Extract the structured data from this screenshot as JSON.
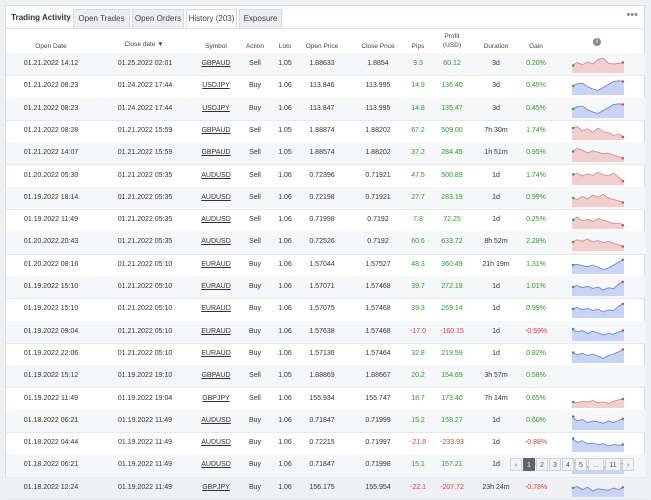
{
  "tabs": [
    {
      "label": "Trading Activity"
    },
    {
      "label": "Open Trades"
    },
    {
      "label": "Open Orders"
    },
    {
      "label": "History (203)"
    },
    {
      "label": "Exposure"
    }
  ],
  "menu_glyph": "•••",
  "columns": {
    "open_date": "Open Date",
    "close_date": "Close date ▼",
    "symbol": "Symbol",
    "action": "Action",
    "lots": "Lots",
    "open_price": "Open Price",
    "close_price": "Close Price",
    "pips": "Pips",
    "profit_l1": "Profit",
    "profit_l2": "(USD)",
    "duration": "Duration",
    "gain": "Gain",
    "info": "i"
  },
  "rows": [
    {
      "open": "01.21.2022 14:12",
      "close": "01.25.2022 02:01",
      "symbol": "GBPAUD",
      "action": "Sell",
      "lots": "1.05",
      "op": "1.88633",
      "cp": "1.8854",
      "pips": "9.3",
      "profit": "60.12",
      "duration": "3d",
      "gain": "0.20%",
      "positive": true,
      "color": "red",
      "spark": [
        0.6,
        0.4,
        0.55,
        0.35,
        0.5,
        0.2,
        0.1,
        0.45,
        0.5,
        0.45,
        0.4
      ]
    },
    {
      "open": "01.21.2022 08:23",
      "close": "01.24.2022 17:44",
      "symbol": "USDJPY",
      "action": "Buy",
      "lots": "1.06",
      "op": "113.846",
      "cp": "113.995",
      "pips": "14.9",
      "profit": "136.40",
      "duration": "3d",
      "gain": "0.45%",
      "positive": true,
      "color": "blue",
      "spark": [
        0.5,
        0.35,
        0.3,
        0.55,
        0.7,
        0.8,
        0.6,
        0.4,
        0.2,
        0.15,
        0.2
      ]
    },
    {
      "open": "01.21.2022 08:23",
      "close": "01.24.2022 17:44",
      "symbol": "USDJPY",
      "action": "Buy",
      "lots": "1.06",
      "op": "113.847",
      "cp": "113.995",
      "pips": "14.8",
      "profit": "135.47",
      "duration": "3d",
      "gain": "0.45%",
      "positive": true,
      "color": "blue",
      "spark": [
        0.5,
        0.35,
        0.3,
        0.55,
        0.7,
        0.8,
        0.6,
        0.4,
        0.2,
        0.15,
        0.2
      ]
    },
    {
      "open": "01.21.2022 08:28",
      "close": "01.21.2022 15:59",
      "symbol": "GBPAUD",
      "action": "Sell",
      "lots": "1.05",
      "op": "1.88874",
      "cp": "1.88202",
      "pips": "67.2",
      "profit": "509.00",
      "duration": "7h 30m",
      "gain": "1.74%",
      "positive": true,
      "color": "red",
      "spark": [
        0.3,
        0.2,
        0.5,
        0.35,
        0.6,
        0.3,
        0.55,
        0.6,
        0.8,
        0.7,
        0.9
      ]
    },
    {
      "open": "01.21.2022 14:07",
      "close": "01.21.2022 15:59",
      "symbol": "GBPAUD",
      "action": "Sell",
      "lots": "1.05",
      "op": "1.88574",
      "cp": "1.88202",
      "pips": "37.2",
      "profit": "284.45",
      "duration": "1h 51m",
      "gain": "0.95%",
      "positive": true,
      "color": "red",
      "spark": [
        0.4,
        0.2,
        0.3,
        0.5,
        0.35,
        0.45,
        0.55,
        0.5,
        0.65,
        0.75,
        0.85
      ]
    },
    {
      "open": "01.20.2022 05:30",
      "close": "01.21.2022 05:35",
      "symbol": "AUDUSD",
      "action": "Sell",
      "lots": "1.06",
      "op": "0.72396",
      "cp": "0.71921",
      "pips": "47.5",
      "profit": "500.89",
      "duration": "1d",
      "gain": "1.74%",
      "positive": true,
      "color": "red",
      "spark": [
        0.4,
        0.3,
        0.5,
        0.35,
        0.45,
        0.25,
        0.4,
        0.5,
        0.3,
        0.6,
        0.85
      ]
    },
    {
      "open": "01.19.2022 18:14",
      "close": "01.21.2022 05:35",
      "symbol": "AUDUSD",
      "action": "Sell",
      "lots": "1.06",
      "op": "0.72198",
      "cp": "0.71921",
      "pips": "27.7",
      "profit": "283.19",
      "duration": "1d",
      "gain": "0.99%",
      "positive": true,
      "color": "red",
      "spark": [
        0.5,
        0.6,
        0.4,
        0.55,
        0.3,
        0.45,
        0.25,
        0.5,
        0.6,
        0.7,
        0.8
      ]
    },
    {
      "open": "01.19.2022 11:49",
      "close": "01.21.2022 05:35",
      "symbol": "AUDUSD",
      "action": "Sell",
      "lots": "1.06",
      "op": "0.71998",
      "cp": "0.7192",
      "pips": "7.8",
      "profit": "72.25",
      "duration": "1d",
      "gain": "0.25%",
      "positive": true,
      "color": "red",
      "spark": [
        0.5,
        0.3,
        0.55,
        0.45,
        0.6,
        0.4,
        0.5,
        0.6,
        0.75,
        0.7,
        0.85
      ]
    },
    {
      "open": "01.20.2022 20:43",
      "close": "01.21.2022 05:35",
      "symbol": "AUDUSD",
      "action": "Sell",
      "lots": "1.06",
      "op": "0.72526",
      "cp": "0.7192",
      "pips": "60.6",
      "profit": "633.72",
      "duration": "8h 52m",
      "gain": "2.28%",
      "positive": true,
      "color": "red",
      "spark": [
        0.5,
        0.35,
        0.45,
        0.3,
        0.5,
        0.4,
        0.55,
        0.45,
        0.6,
        0.7,
        0.8
      ]
    },
    {
      "open": "01.20.2022 08:16",
      "close": "01.21.2022 05:10",
      "symbol": "EURAUD",
      "action": "Buy",
      "lots": "1.06",
      "op": "1.57044",
      "cp": "1.57527",
      "pips": "48.3",
      "profit": "360.49",
      "duration": "21h 19m",
      "gain": "1.31%",
      "positive": true,
      "color": "blue",
      "spark": [
        0.5,
        0.45,
        0.55,
        0.6,
        0.5,
        0.65,
        0.8,
        0.7,
        0.5,
        0.3,
        0.15
      ]
    },
    {
      "open": "01.19.2022 15:10",
      "close": "01.21.2022 05:10",
      "symbol": "EURAUD",
      "action": "Buy",
      "lots": "1.06",
      "op": "1.57071",
      "cp": "1.57468",
      "pips": "39.7",
      "profit": "272.19",
      "duration": "1d",
      "gain": "1.01%",
      "positive": true,
      "color": "blue",
      "spark": [
        0.5,
        0.4,
        0.55,
        0.45,
        0.6,
        0.5,
        0.7,
        0.55,
        0.6,
        0.3,
        0.15
      ]
    },
    {
      "open": "01.19.2022 15:10",
      "close": "01.21.2022 05:10",
      "symbol": "EURAUD",
      "action": "Buy",
      "lots": "1.06",
      "op": "1.57075",
      "cp": "1.57468",
      "pips": "39.3",
      "profit": "269.14",
      "duration": "1d",
      "gain": "0.99%",
      "positive": true,
      "color": "blue",
      "spark": [
        0.5,
        0.4,
        0.55,
        0.45,
        0.6,
        0.5,
        0.7,
        0.55,
        0.6,
        0.3,
        0.15
      ]
    },
    {
      "open": "01.19.2022 09:04",
      "close": "01.21.2022 05:10",
      "symbol": "EURAUD",
      "action": "Buy",
      "lots": "1.06",
      "op": "1.57638",
      "cp": "1.57468",
      "pips": "-17.0",
      "profit": "-160.15",
      "duration": "1d",
      "gain": "-0.59%",
      "positive": false,
      "color": "blue",
      "spark": [
        0.3,
        0.5,
        0.4,
        0.6,
        0.45,
        0.55,
        0.7,
        0.6,
        0.65,
        0.5,
        0.4
      ]
    },
    {
      "open": "01.19.2022 22:06",
      "close": "01.21.2022 05:10",
      "symbol": "EURAUD",
      "action": "Buy",
      "lots": "1.06",
      "op": "1.57136",
      "cp": "1.57464",
      "pips": "32.8",
      "profit": "219.59",
      "duration": "1d",
      "gain": "0.82%",
      "positive": true,
      "color": "blue",
      "spark": [
        0.4,
        0.55,
        0.45,
        0.6,
        0.5,
        0.65,
        0.8,
        0.6,
        0.5,
        0.35,
        0.2
      ]
    },
    {
      "open": "01.19.2022 15:12",
      "close": "01.19.2022 19:10",
      "symbol": "GBPAUD",
      "action": "Sell",
      "lots": "1.05",
      "op": "1.88869",
      "cp": "1.88667",
      "pips": "20.2",
      "profit": "154.69",
      "duration": "3h 57m",
      "gain": "0.58%",
      "positive": true,
      "color": "none",
      "spark": []
    },
    {
      "open": "01.19.2022 11:49",
      "close": "01.19.2022 19:04",
      "symbol": "GBPJPY",
      "action": "Sell",
      "lots": "1.06",
      "op": "155.934",
      "cp": "155.747",
      "pips": "18.7",
      "profit": "173.40",
      "duration": "7h 14m",
      "gain": "0.65%",
      "positive": true,
      "color": "red",
      "spark": [
        0.7,
        0.75,
        0.65,
        0.7,
        0.6,
        0.75,
        0.7,
        0.8,
        0.65,
        0.55,
        0.5
      ]
    },
    {
      "open": "01.18.2022 06:21",
      "close": "01.19.2022 11:49",
      "symbol": "AUDUSD",
      "action": "Buy",
      "lots": "1.06",
      "op": "0.71847",
      "cp": "0.71999",
      "pips": "15.2",
      "profit": "158.27",
      "duration": "1d",
      "gain": "0.60%",
      "positive": true,
      "color": "blue",
      "spark": [
        0.2,
        0.5,
        0.4,
        0.6,
        0.5,
        0.55,
        0.65,
        0.5,
        0.6,
        0.45,
        0.35
      ]
    },
    {
      "open": "01.18.2022 04:44",
      "close": "01.19.2022 11:49",
      "symbol": "AUDUSD",
      "action": "Buy",
      "lots": "1.06",
      "op": "0.72215",
      "cp": "0.71997",
      "pips": "-21.8",
      "profit": "-233.93",
      "duration": "1d",
      "gain": "-0.88%",
      "positive": false,
      "color": "blue",
      "spark": [
        0.2,
        0.45,
        0.35,
        0.55,
        0.5,
        0.6,
        0.55,
        0.7,
        0.6,
        0.65,
        0.6
      ]
    },
    {
      "open": "01.18.2022 06:21",
      "close": "01.19.2022 11:49",
      "symbol": "AUDUSD",
      "action": "Buy",
      "lots": "1.06",
      "op": "0.71847",
      "cp": "0.71998",
      "pips": "15.1",
      "profit": "157.21",
      "duration": "1d",
      "gain": "0.60%",
      "positive": true,
      "color": "blue",
      "spark": [
        0.2,
        0.5,
        0.4,
        0.6,
        0.5,
        0.55,
        0.65,
        0.5,
        0.6,
        0.45,
        0.35
      ]
    },
    {
      "open": "01.18.2022 12:24",
      "close": "01.19.2022 11:49",
      "symbol": "GBPJPY",
      "action": "Buy",
      "lots": "1.06",
      "op": "156.175",
      "cp": "155.954",
      "pips": "-22.1",
      "profit": "-207.72",
      "duration": "23h 24m",
      "gain": "-0.78%",
      "positive": false,
      "color": "blue",
      "spark": [
        0.5,
        0.4,
        0.6,
        0.45,
        0.7,
        0.55,
        0.6,
        0.65,
        0.5,
        0.6,
        0.45
      ]
    }
  ],
  "pager": {
    "prev": "‹",
    "pages": [
      "1",
      "2",
      "3",
      "4",
      "5",
      "...",
      "11"
    ],
    "current": "1",
    "next": "›"
  },
  "colors": {
    "positive": "#2a9d2a",
    "negative": "#e03c3c",
    "spark_red_fill": "#f2cfcf",
    "spark_red_line": "#d88080",
    "spark_blue_fill": "#c9d4f5",
    "spark_blue_line": "#5a7de0"
  }
}
